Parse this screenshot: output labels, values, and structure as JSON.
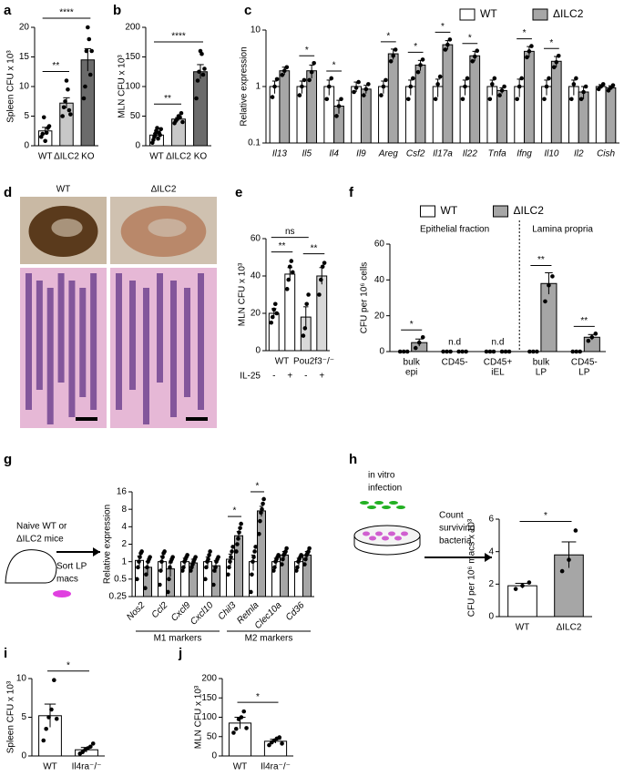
{
  "chart_data": [
    {
      "panel": "a",
      "type": "bar",
      "ylabel": "Spleen CFU x 10³",
      "categories": [
        "WT",
        "ΔILC2",
        "KO"
      ],
      "values": [
        2.5,
        7.2,
        14.5
      ],
      "errors": [
        0.6,
        0.9,
        1.9
      ],
      "colors": [
        "#ffffff",
        "#c8c8c8",
        "#6b6b6b"
      ],
      "points": [
        [
          1.5,
          2,
          4.8,
          0.8,
          2.2,
          3,
          3.3
        ],
        [
          5,
          6.5,
          7.5,
          11,
          9.5,
          6,
          5.3
        ],
        [
          8,
          10,
          16,
          20,
          18,
          12,
          16
        ]
      ],
      "ylim": [
        0,
        20
      ],
      "yticks": [
        0,
        5,
        10,
        15,
        20
      ],
      "significance": [
        {
          "from": 0,
          "to": 1,
          "label": "**"
        },
        {
          "from": 0,
          "to": 2,
          "label": "****"
        }
      ]
    },
    {
      "panel": "b",
      "type": "bar",
      "ylabel": "MLN CFU x 10³",
      "categories": [
        "WT",
        "ΔILC2",
        "KO"
      ],
      "values": [
        18,
        45,
        125
      ],
      "errors": [
        3,
        2.5,
        12
      ],
      "colors": [
        "#ffffff",
        "#c8c8c8",
        "#6b6b6b"
      ],
      "points": [
        [
          5,
          10,
          15,
          20,
          25,
          30,
          12,
          22,
          18,
          28
        ],
        [
          38,
          42,
          45,
          50,
          48,
          55,
          40
        ],
        [
          80,
          110,
          125,
          160,
          155,
          120,
          130
        ]
      ],
      "ylim": [
        0,
        200
      ],
      "yticks": [
        0,
        50,
        100,
        150,
        200
      ],
      "significance": [
        {
          "from": 0,
          "to": 1,
          "label": "**"
        },
        {
          "from": 0,
          "to": 2,
          "label": "****"
        }
      ]
    },
    {
      "panel": "c",
      "type": "bar",
      "ylabel": "Relative expression",
      "log_scale": true,
      "italic_categories": true,
      "legend": "top-right",
      "categories": [
        "Il13",
        "Il5",
        "Il4",
        "Il9",
        "Areg",
        "Csf2",
        "Il17a",
        "Il22",
        "Tnfa",
        "Ifng",
        "Il10",
        "Il2",
        "Cish"
      ],
      "series": [
        {
          "name": "WT",
          "color": "#ffffff",
          "values": [
            1,
            1,
            1,
            1,
            1,
            1,
            1,
            1,
            1,
            1,
            1,
            1,
            1
          ],
          "errors": [
            0.25,
            0.25,
            0.3,
            0.2,
            0.25,
            0.3,
            0.35,
            0.3,
            0.3,
            0.35,
            0.3,
            0.3,
            0.08
          ],
          "points": [
            [
              0.65,
              1,
              1.35
            ],
            [
              0.7,
              1,
              1.3
            ],
            [
              0.6,
              1,
              1.4
            ],
            [
              0.8,
              0.95,
              1.2
            ],
            [
              0.7,
              1,
              1.3
            ],
            [
              0.6,
              1,
              1.4
            ],
            [
              0.6,
              1.1,
              1.5
            ],
            [
              0.6,
              1,
              1.4
            ],
            [
              0.6,
              1.1,
              1.4
            ],
            [
              0.6,
              1,
              1.4
            ],
            [
              0.6,
              1,
              1.4
            ],
            [
              0.6,
              1.1,
              1.4
            ],
            [
              0.9,
              1,
              1.1
            ]
          ]
        },
        {
          "name": "ΔILC2",
          "color": "#a6a6a6",
          "values": [
            1.9,
            1.9,
            0.45,
            0.9,
            3.8,
            2.4,
            5.5,
            3.5,
            0.85,
            4.2,
            2.8,
            0.8,
            0.95
          ],
          "errors": [
            0.3,
            0.5,
            0.12,
            0.15,
            0.8,
            0.5,
            1,
            0.7,
            0.1,
            0.9,
            0.6,
            0.2,
            0.08
          ],
          "points": [
            [
              1.6,
              1.9,
              2.2
            ],
            [
              1.3,
              1.8,
              2.6
            ],
            [
              0.3,
              0.45,
              0.6
            ],
            [
              0.7,
              0.9,
              1.1
            ],
            [
              2.8,
              3.5,
              4.5
            ],
            [
              1.8,
              2.4,
              3
            ],
            [
              4.5,
              5.5,
              6.8
            ],
            [
              2.8,
              3.4,
              4.3
            ],
            [
              0.7,
              0.85,
              1
            ],
            [
              3.3,
              4.2,
              5.2
            ],
            [
              2.2,
              2.7,
              3.5
            ],
            [
              0.6,
              0.8,
              1
            ],
            [
              0.85,
              0.95,
              1.05
            ]
          ]
        }
      ],
      "ylim": [
        0.1,
        10
      ],
      "yticks": [
        0.1,
        1,
        10
      ],
      "significance": [
        {
          "category": 1,
          "label": "*"
        },
        {
          "category": 2,
          "label": "*"
        },
        {
          "category": 4,
          "label": "*"
        },
        {
          "category": 5,
          "label": "*"
        },
        {
          "category": 6,
          "label": "*"
        },
        {
          "category": 7,
          "label": "*"
        },
        {
          "category": 9,
          "label": "*"
        },
        {
          "category": 10,
          "label": "*"
        }
      ]
    },
    {
      "panel": "d",
      "type": "image",
      "labels": [
        "WT",
        "ΔILC2"
      ]
    },
    {
      "panel": "e",
      "type": "bar",
      "ylabel": "MLN CFU x 10³",
      "categories": [
        "-",
        "+",
        "-",
        "+"
      ],
      "row_label": "IL-25",
      "groups": [
        {
          "label": "WT",
          "from": 0,
          "to": 1
        },
        {
          "label": "Pou2f3⁻/⁻",
          "from": 2,
          "to": 3
        }
      ],
      "values": [
        20,
        41,
        18,
        40
      ],
      "errors": [
        2.5,
        3.5,
        5.5,
        4.5
      ],
      "colors": [
        "#ffffff",
        "#ffffff",
        "#d9d9d9",
        "#d9d9d9"
      ],
      "points": [
        [
          15,
          18,
          22,
          25,
          20
        ],
        [
          33,
          38,
          45,
          48,
          42
        ],
        [
          8,
          12,
          25,
          30
        ],
        [
          30,
          38,
          45,
          47
        ]
      ],
      "ylim": [
        0,
        60
      ],
      "yticks": [
        0,
        20,
        40,
        60
      ],
      "significance": [
        {
          "from": 0,
          "to": 1,
          "label": "**"
        },
        {
          "from": 2,
          "to": 3,
          "label": "**"
        },
        {
          "from": 0,
          "to": 2,
          "label": "ns"
        }
      ]
    },
    {
      "panel": "f",
      "type": "bar",
      "ylabel": "CFU per 10⁶ cells",
      "legend": "top",
      "categories": [
        [
          "bulk",
          "epi"
        ],
        [
          "CD45-"
        ],
        [
          "CD45+",
          "iEL"
        ],
        [
          "bulk",
          "LP"
        ],
        [
          "CD45-",
          "LP"
        ]
      ],
      "regions": [
        {
          "label": "Epithelial fraction",
          "from": 0,
          "to": 2
        },
        {
          "label": "Lamina propria",
          "from": 3,
          "to": 4
        }
      ],
      "annotations": [
        {
          "category": 1,
          "label": "n.d"
        },
        {
          "category": 2,
          "label": "n.d"
        }
      ],
      "series": [
        {
          "name": "WT",
          "color": "#ffffff",
          "values": [
            0,
            0,
            0,
            0,
            0
          ],
          "points": [
            [
              0,
              0,
              0
            ],
            [
              0,
              0,
              0
            ],
            [
              0,
              0,
              0
            ],
            [
              0,
              0,
              0
            ],
            [
              0,
              0,
              0
            ]
          ]
        },
        {
          "name": "ΔILC2",
          "color": "#a6a6a6",
          "values": [
            5,
            0,
            0,
            38,
            8
          ],
          "errors": [
            2,
            null,
            null,
            6,
            1.5
          ],
          "points": [
            [
              2,
              5,
              8
            ],
            [
              0,
              0,
              0
            ],
            [
              0,
              0,
              0
            ],
            [
              28,
              37,
              42
            ],
            [
              6,
              8,
              10
            ]
          ]
        }
      ],
      "ylim": [
        0,
        60
      ],
      "yticks": [
        0,
        20,
        40,
        60
      ],
      "significance": [
        {
          "category": 0,
          "label": "*"
        },
        {
          "category": 3,
          "label": "**"
        },
        {
          "category": 4,
          "label": "**"
        }
      ]
    },
    {
      "panel": "g",
      "type": "bar",
      "ylabel": "Relative expression",
      "log_scale": true,
      "log_base": 2,
      "italic_categories": true,
      "rotate_categories": true,
      "diagram_text": [
        "Naive WT or",
        "ΔILC2 mice",
        "Sort LP",
        "macs"
      ],
      "categories": [
        "Nos2",
        "Ccl2",
        "Cxcl9",
        "Cxcl10",
        "Chil3",
        "Retnla",
        "Clec10a",
        "Cd36"
      ],
      "groups": [
        {
          "label": "M1 markers",
          "from": 0,
          "to": 3
        },
        {
          "label": "M2 markers",
          "from": 4,
          "to": 7
        }
      ],
      "series": [
        {
          "name": "WT",
          "color": "#ffffff",
          "values": [
            1.05,
            1,
            1,
            1,
            1.1,
            1,
            1,
            1
          ],
          "errors": [
            0.2,
            0.25,
            0.15,
            0.2,
            0.25,
            0.3,
            0.15,
            0.15
          ],
          "points": [
            [
              0.5,
              0.8,
              1,
              1.2,
              1.4,
              1.5
            ],
            [
              0.4,
              0.7,
              1,
              1.2,
              1.4,
              1.5
            ],
            [
              0.7,
              0.8,
              1,
              1.1,
              1.2,
              1.3
            ],
            [
              0.5,
              0.8,
              1,
              1.1,
              1.3,
              1.5
            ],
            [
              0.6,
              0.8,
              1,
              1.2,
              1.5,
              1.8
            ],
            [
              0.3,
              0.6,
              1,
              1.2,
              1.5,
              1.8
            ],
            [
              0.7,
              0.8,
              1,
              1.1,
              1.2,
              1.3
            ],
            [
              0.7,
              0.8,
              1,
              1.1,
              1.2,
              1.3
            ]
          ]
        },
        {
          "name": "ΔILC2",
          "color": "#a6a6a6",
          "values": [
            0.8,
            0.75,
            0.95,
            0.85,
            2.8,
            7.5,
            1.3,
            1.3
          ],
          "errors": [
            0.2,
            0.2,
            0.15,
            0.2,
            0.5,
            1.5,
            0.2,
            0.2
          ],
          "points": [
            [
              0.35,
              0.6,
              0.8,
              1,
              1.1,
              1.2
            ],
            [
              0.3,
              0.5,
              0.8,
              1,
              1.1,
              1.2
            ],
            [
              0.7,
              0.8,
              0.9,
              1,
              1.1,
              1.2
            ],
            [
              0.4,
              0.7,
              0.8,
              1,
              1.1,
              1.2
            ],
            [
              1.5,
              2,
              2.5,
              3.2,
              3.8,
              4.5
            ],
            [
              3,
              5,
              7,
              8,
              10,
              12
            ],
            [
              0.9,
              1.1,
              1.3,
              1.4,
              1.5,
              1.7
            ],
            [
              0.9,
              1.1,
              1.3,
              1.4,
              1.5,
              1.7
            ]
          ]
        }
      ],
      "ylim": [
        0.25,
        16
      ],
      "yticks": [
        0.25,
        0.5,
        1,
        2,
        4,
        8,
        16
      ],
      "significance": [
        {
          "category": 4,
          "label": "*"
        },
        {
          "category": 5,
          "label": "*"
        }
      ]
    },
    {
      "panel": "h",
      "type": "bar",
      "ylabel": "CFU per 10⁶ macs x 10³",
      "categories": [
        "WT",
        "ΔILC2"
      ],
      "diagram_text": [
        "in vitro",
        "infection",
        "Count",
        "surviving",
        "bacteria"
      ],
      "values": [
        1.9,
        3.8
      ],
      "errors": [
        0.15,
        0.8
      ],
      "colors": [
        "#ffffff",
        "#a6a6a6"
      ],
      "points": [
        [
          1.7,
          1.9,
          2.1
        ],
        [
          2.8,
          3.5,
          5.3
        ]
      ],
      "ylim": [
        0,
        6
      ],
      "yticks": [
        0,
        2,
        4,
        6
      ],
      "significance": [
        {
          "from": 0,
          "to": 1,
          "label": "*"
        }
      ]
    },
    {
      "panel": "i",
      "type": "bar",
      "ylabel": "Spleen CFU x 10³",
      "categories": [
        "WT",
        "Il4ra⁻/⁻"
      ],
      "values": [
        5.2,
        0.8
      ],
      "errors": [
        1.5,
        0.3
      ],
      "colors": [
        "#ffffff",
        "#ffffff"
      ],
      "points": [
        [
          2,
          3.5,
          5,
          6,
          9.8,
          4.8
        ],
        [
          0.3,
          0.5,
          0.8,
          1,
          1.2,
          1.6
        ]
      ],
      "ylim": [
        0,
        10
      ],
      "yticks": [
        0,
        5,
        10
      ],
      "significance": [
        {
          "from": 0,
          "to": 1,
          "label": "*"
        }
      ]
    },
    {
      "panel": "j",
      "type": "bar",
      "ylabel": "MLN CFU x 10³",
      "categories": [
        "WT",
        "Il4ra⁻/⁻"
      ],
      "values": [
        85,
        38
      ],
      "errors": [
        15,
        5
      ],
      "colors": [
        "#ffffff",
        "#ffffff"
      ],
      "points": [
        [
          60,
          70,
          95,
          100,
          115,
          72
        ],
        [
          28,
          35,
          40,
          45,
          48,
          32
        ]
      ],
      "ylim": [
        0,
        200
      ],
      "yticks": [
        0,
        50,
        100,
        150,
        200
      ],
      "significance": [
        {
          "from": 0,
          "to": 1,
          "label": "*"
        }
      ]
    }
  ]
}
